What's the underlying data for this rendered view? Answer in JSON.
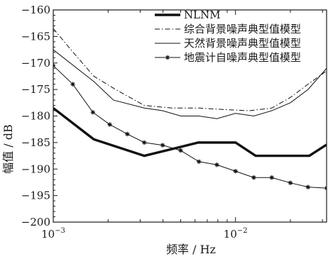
{
  "chart_data": {
    "type": "line",
    "xlabel": "频率 / Hz",
    "ylabel": "幅值 / dB",
    "x_scale": "log",
    "xlim": [
      0.001,
      0.0316
    ],
    "ylim": [
      -200,
      -160
    ],
    "x_ticks": [
      {
        "value": 0.001,
        "base": "10",
        "exp": "−3"
      },
      {
        "value": 0.01,
        "base": "10",
        "exp": "−2"
      }
    ],
    "y_ticks": [
      {
        "value": -160,
        "label": "−160"
      },
      {
        "value": -165,
        "label": "−165"
      },
      {
        "value": -170,
        "label": "−170"
      },
      {
        "value": -175,
        "label": "−175"
      },
      {
        "value": -180,
        "label": "−180"
      },
      {
        "value": -185,
        "label": "−185"
      },
      {
        "value": -190,
        "label": "−190"
      },
      {
        "value": -195,
        "label": "−195"
      },
      {
        "value": -200,
        "label": "−200"
      }
    ],
    "grid": false,
    "legend_position": "top-right",
    "series": [
      {
        "name": "NLNM",
        "style": "thick",
        "color": "#111111",
        "x": [
          0.001,
          0.00167,
          0.00316,
          0.00625,
          0.01,
          0.0129,
          0.0254,
          0.0316
        ],
        "y": [
          -178.5,
          -184.4,
          -187.5,
          -185,
          -185,
          -187.5,
          -187.5,
          -185.4
        ]
      },
      {
        "name": "综合背景噪声典型值模型",
        "style": "dashdot",
        "color": "#111111",
        "x": [
          0.001,
          0.00125,
          0.00167,
          0.0022,
          0.00316,
          0.00447,
          0.00631,
          0.0089,
          0.0119,
          0.0158,
          0.02,
          0.025,
          0.0316
        ],
        "y": [
          -163.5,
          -167.5,
          -172.5,
          -175,
          -178,
          -178.5,
          -178.5,
          -178.8,
          -179,
          -178.5,
          -176.5,
          -174,
          -171.5
        ]
      },
      {
        "name": "天然背景噪声典型值模型",
        "style": "thin",
        "color": "#111111",
        "x": [
          0.001,
          0.00167,
          0.00214,
          0.00316,
          0.00398,
          0.00501,
          0.0063,
          0.0079,
          0.01,
          0.0126,
          0.0158,
          0.02,
          0.025,
          0.0316
        ],
        "y": [
          -167.5,
          -173.5,
          -177,
          -178.5,
          -179,
          -180,
          -180,
          -180.5,
          -179.5,
          -180,
          -179,
          -177.5,
          -175,
          -171
        ]
      },
      {
        "name": "地震计自噪声典型值模型",
        "style": "star",
        "color": "#111111",
        "x": [
          0.001,
          0.00128,
          0.00165,
          0.00204,
          0.00255,
          0.00316,
          0.00398,
          0.005,
          0.0063,
          0.0079,
          0.01,
          0.0126,
          0.0158,
          0.02,
          0.025,
          0.0316
        ],
        "y": [
          -170.5,
          -174,
          -179.3,
          -181.6,
          -183.4,
          -185,
          -185.5,
          -186.5,
          -188.6,
          -189.2,
          -190.4,
          -191.6,
          -191.6,
          -192.6,
          -193.4,
          -193.6
        ]
      }
    ]
  }
}
